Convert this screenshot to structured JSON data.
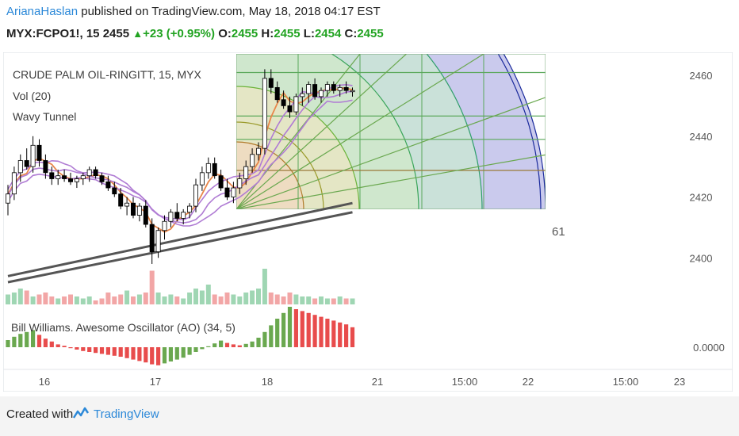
{
  "header": {
    "author": "ArianaHaslan",
    "published_text": "published on TradingView.com, May 18, 2018 04:17 EST",
    "symbol": "MYX:FCPO1!, 15",
    "last": "2455",
    "change": "+23 (+0.95%)",
    "o_label": "O:",
    "o_value": "2455",
    "h_label": "H:",
    "h_value": "2455",
    "l_label": "L:",
    "l_value": "2454",
    "c_label": "C:",
    "c_value": "2455"
  },
  "legend": {
    "title": "CRUDE PALM OIL-RINGITT, 15, MYX",
    "vol": "Vol (20)",
    "wavy": "Wavy Tunnel",
    "ao": "Bill Williams. Awesome Oscillator (AO) (34, 5)"
  },
  "gann_label": "61",
  "footer": {
    "created_with": "Created with",
    "brand": "TradingView"
  },
  "chart_data": {
    "type": "candlestick",
    "y_ticks": [
      "2460",
      "2440",
      "2420",
      "2400"
    ],
    "ao_tick": "0.0000",
    "x_ticks": [
      "16",
      "17",
      "18",
      "21",
      "15:00",
      "22",
      "15:00",
      "23"
    ],
    "price_range": [
      2392,
      2466
    ],
    "candles": [
      [
        2418,
        2424,
        2414,
        2421
      ],
      [
        2421,
        2430,
        2419,
        2428
      ],
      [
        2428,
        2434,
        2425,
        2432
      ],
      [
        2432,
        2436,
        2429,
        2430
      ],
      [
        2430,
        2440,
        2428,
        2437
      ],
      [
        2437,
        2439,
        2430,
        2432
      ],
      [
        2432,
        2434,
        2426,
        2428
      ],
      [
        2428,
        2430,
        2424,
        2426
      ],
      [
        2426,
        2429,
        2424,
        2427
      ],
      [
        2427,
        2429,
        2425,
        2426
      ],
      [
        2426,
        2428,
        2424,
        2425
      ],
      [
        2425,
        2427,
        2423,
        2426
      ],
      [
        2426,
        2428,
        2424,
        2427
      ],
      [
        2427,
        2430,
        2425,
        2429
      ],
      [
        2429,
        2430,
        2426,
        2427
      ],
      [
        2427,
        2428,
        2424,
        2425
      ],
      [
        2425,
        2427,
        2422,
        2423
      ],
      [
        2423,
        2425,
        2420,
        2421
      ],
      [
        2421,
        2423,
        2416,
        2417
      ],
      [
        2417,
        2420,
        2414,
        2418
      ],
      [
        2418,
        2420,
        2413,
        2414
      ],
      [
        2414,
        2418,
        2412,
        2417
      ],
      [
        2417,
        2419,
        2410,
        2411
      ],
      [
        2411,
        2413,
        2398,
        2402
      ],
      [
        2402,
        2410,
        2400,
        2409
      ],
      [
        2409,
        2414,
        2406,
        2412
      ],
      [
        2412,
        2416,
        2410,
        2415
      ],
      [
        2415,
        2418,
        2412,
        2413
      ],
      [
        2413,
        2416,
        2411,
        2415
      ],
      [
        2415,
        2418,
        2413,
        2417
      ],
      [
        2417,
        2426,
        2415,
        2424
      ],
      [
        2424,
        2430,
        2422,
        2428
      ],
      [
        2428,
        2433,
        2426,
        2431
      ],
      [
        2431,
        2433,
        2426,
        2427
      ],
      [
        2427,
        2429,
        2422,
        2423
      ],
      [
        2423,
        2426,
        2419,
        2420
      ],
      [
        2420,
        2425,
        2418,
        2423
      ],
      [
        2423,
        2428,
        2421,
        2426
      ],
      [
        2426,
        2432,
        2424,
        2430
      ],
      [
        2430,
        2436,
        2428,
        2434
      ],
      [
        2434,
        2438,
        2432,
        2436
      ],
      [
        2436,
        2462,
        2434,
        2459
      ],
      [
        2459,
        2462,
        2454,
        2456
      ],
      [
        2456,
        2458,
        2451,
        2452
      ],
      [
        2452,
        2455,
        2449,
        2450
      ],
      [
        2450,
        2453,
        2446,
        2448
      ],
      [
        2448,
        2454,
        2447,
        2453
      ],
      [
        2453,
        2456,
        2450,
        2454
      ],
      [
        2454,
        2458,
        2451,
        2457
      ],
      [
        2457,
        2459,
        2452,
        2453
      ],
      [
        2453,
        2456,
        2451,
        2455
      ],
      [
        2455,
        2458,
        2453,
        2457
      ],
      [
        2457,
        2458,
        2454,
        2455
      ],
      [
        2455,
        2457,
        2453,
        2456
      ],
      [
        2456,
        2458,
        2454,
        2455
      ],
      [
        2455,
        2456,
        2453,
        2455
      ]
    ],
    "ao_values": [
      1.5,
      2.2,
      2.8,
      3.2,
      3.6,
      2.6,
      1.8,
      1.2,
      0.6,
      0.3,
      -0.2,
      -0.5,
      -0.8,
      -1.0,
      -1.2,
      -1.4,
      -1.6,
      -1.8,
      -2.0,
      -2.3,
      -2.6,
      -2.9,
      -3.2,
      -3.6,
      -3.8,
      -3.4,
      -3.0,
      -2.6,
      -2.2,
      -1.6,
      -1.0,
      -0.4,
      0.2,
      0.8,
      1.4,
      0.9,
      0.6,
      0.4,
      0.7,
      1.2,
      2.0,
      3.2,
      4.6,
      6.0,
      7.2,
      8.5,
      8.0,
      7.6,
      7.2,
      6.8,
      6.4,
      6.0,
      5.6,
      5.2,
      4.8,
      4.2
    ],
    "volumes": [
      0.25,
      0.3,
      0.4,
      0.35,
      0.2,
      0.25,
      0.3,
      0.2,
      0.15,
      0.2,
      0.25,
      0.2,
      0.15,
      0.2,
      0.1,
      0.15,
      0.3,
      0.2,
      0.25,
      0.35,
      0.2,
      0.25,
      0.3,
      0.85,
      0.3,
      0.2,
      0.25,
      0.2,
      0.15,
      0.3,
      0.4,
      0.35,
      0.5,
      0.25,
      0.2,
      0.3,
      0.25,
      0.2,
      0.3,
      0.35,
      0.4,
      0.9,
      0.3,
      0.25,
      0.2,
      0.3,
      0.25,
      0.2,
      0.2,
      0.15,
      0.2,
      0.15,
      0.15,
      0.2,
      0.15,
      0.15
    ]
  },
  "colors": {
    "up": "#000000",
    "down_fill": "#000000",
    "candle_up_fill": "#ffffff",
    "orange": "#e8864a",
    "purple": "#b07cd4",
    "ema_gray": "#555555",
    "ao_green": "#6aa84f",
    "ao_red": "#e84c4c",
    "vol_green": "#9fd6b3",
    "vol_red": "#f2a6a6",
    "gann_blue": "#1a2a9c",
    "grid_green": "#4caf50",
    "brand_blue": "#2b88d8"
  }
}
